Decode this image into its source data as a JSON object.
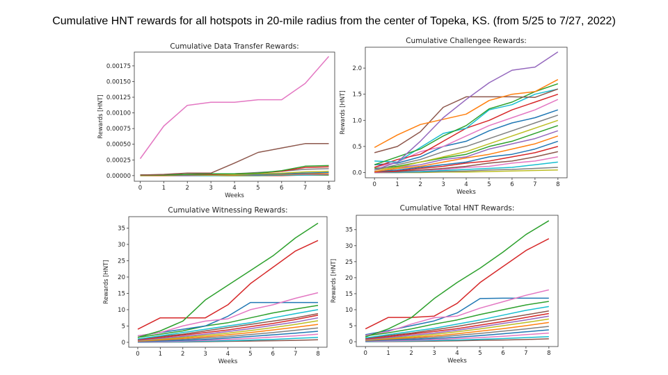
{
  "title": "Cumulative HNT rewards for all hotspots in 20-mile radius from the center of Topeka, KS. (from 5/25 to 7/27, 2022)",
  "colors": [
    "#1f77b4",
    "#ff7f0e",
    "#2ca02c",
    "#d62728",
    "#9467bd",
    "#8c564b",
    "#e377c2",
    "#7f7f7f",
    "#bcbd22",
    "#17becf"
  ],
  "chart_data": [
    {
      "type": "line",
      "title": "Cumulative Data Transfer Rewards:",
      "xlabel": "Weeks",
      "ylabel": "Rewards [HNT]",
      "x": [
        0,
        1,
        2,
        3,
        4,
        5,
        6,
        7,
        8
      ],
      "xlim": [
        -0.25,
        8.25
      ],
      "ylim": [
        -9e-05,
        0.00197
      ],
      "yticks": [
        "0.00000",
        "0.00025",
        "0.00050",
        "0.00075",
        "0.00100",
        "0.00125",
        "0.00150",
        "0.00175"
      ],
      "ytick_values": [
        0,
        0.00025,
        0.0005,
        0.00075,
        0.001,
        0.00125,
        0.0015,
        0.00175
      ],
      "series": [
        {
          "color": "#e377c2",
          "values": [
            0.00027,
            0.00079,
            0.00112,
            0.00117,
            0.00117,
            0.00121,
            0.00121,
            0.00147,
            0.0019
          ]
        },
        {
          "color": "#8c564b",
          "values": [
            1e-05,
            2e-05,
            4e-05,
            4e-05,
            0.0002,
            0.00037,
            0.00044,
            0.00051,
            0.00051
          ]
        },
        {
          "color": "#2ca02c",
          "values": [
            1e-05,
            1e-05,
            2e-05,
            3e-05,
            3e-05,
            4e-05,
            8e-05,
            0.00015,
            0.00016
          ]
        },
        {
          "color": "#d62728",
          "values": [
            1e-05,
            1e-05,
            2e-05,
            2e-05,
            3e-05,
            4e-05,
            7e-05,
            0.00013,
            0.00014
          ]
        },
        {
          "color": "#7f7f7f",
          "values": [
            1e-05,
            1e-05,
            1e-05,
            2e-05,
            3e-05,
            5e-05,
            7e-05,
            0.0001,
            0.00011
          ]
        },
        {
          "color": "#bcbd22",
          "values": [
            0,
            1e-05,
            1e-05,
            1e-05,
            2e-05,
            3e-05,
            4e-05,
            6e-05,
            7e-05
          ]
        },
        {
          "color": "#1f77b4",
          "values": [
            1e-05,
            1e-05,
            2e-05,
            2e-05,
            2e-05,
            2e-05,
            3e-05,
            4e-05,
            5e-05
          ]
        },
        {
          "color": "#ff7f0e",
          "values": [
            0,
            0,
            1e-05,
            1e-05,
            1e-05,
            2e-05,
            2e-05,
            3e-05,
            3e-05
          ]
        },
        {
          "color": "#9467bd",
          "values": [
            0,
            0,
            0,
            1e-05,
            1e-05,
            1e-05,
            2e-05,
            2e-05,
            2e-05
          ]
        },
        {
          "color": "#17becf",
          "values": [
            0,
            0,
            0,
            0,
            1e-05,
            1e-05,
            1e-05,
            1e-05,
            2e-05
          ]
        },
        {
          "color": "#2ca02c",
          "values": [
            0,
            0,
            0,
            0,
            0,
            0,
            1e-05,
            1e-05,
            1e-05
          ]
        },
        {
          "color": "#d62728",
          "values": [
            0,
            0,
            0,
            0,
            0,
            0,
            0,
            1e-05,
            1e-05
          ]
        }
      ]
    },
    {
      "type": "line",
      "title": "Cumulative Challengee Rewards:",
      "xlabel": "Weeks",
      "ylabel": "Rewards [HNT]",
      "x": [
        0,
        1,
        2,
        3,
        4,
        5,
        6,
        7,
        8
      ],
      "xlim": [
        -0.4,
        8.4
      ],
      "ylim": [
        -0.1,
        2.4
      ],
      "yticks": [
        "0.0",
        "0.5",
        "1.0",
        "1.5",
        "2.0"
      ],
      "ytick_values": [
        0,
        0.5,
        1,
        1.5,
        2
      ],
      "series": [
        {
          "color": "#9467bd",
          "values": [
            0.05,
            0.2,
            0.6,
            1.05,
            1.4,
            1.72,
            1.96,
            2.02,
            2.31
          ]
        },
        {
          "color": "#ff7f0e",
          "values": [
            0.48,
            0.72,
            0.92,
            1.02,
            1.12,
            1.38,
            1.5,
            1.55,
            1.78
          ]
        },
        {
          "color": "#8c564b",
          "values": [
            0.38,
            0.5,
            0.78,
            1.25,
            1.45,
            1.45,
            1.45,
            1.44,
            1.6
          ]
        },
        {
          "color": "#2ca02c",
          "values": [
            0.15,
            0.3,
            0.45,
            0.7,
            0.9,
            1.22,
            1.35,
            1.55,
            1.7
          ]
        },
        {
          "color": "#17becf",
          "values": [
            0.22,
            0.2,
            0.48,
            0.75,
            0.85,
            1.2,
            1.3,
            1.5,
            1.6
          ]
        },
        {
          "color": "#d62728",
          "values": [
            0.1,
            0.25,
            0.35,
            0.6,
            0.85,
            1.0,
            1.2,
            1.35,
            1.5
          ]
        },
        {
          "color": "#e377c2",
          "values": [
            0.1,
            0.2,
            0.4,
            0.5,
            0.7,
            0.9,
            1.05,
            1.2,
            1.4
          ]
        },
        {
          "color": "#1f77b4",
          "values": [
            0.15,
            0.18,
            0.3,
            0.5,
            0.6,
            0.8,
            0.95,
            1.05,
            1.2
          ]
        },
        {
          "color": "#7f7f7f",
          "values": [
            0.05,
            0.15,
            0.25,
            0.4,
            0.5,
            0.65,
            0.8,
            0.95,
            1.1
          ]
        },
        {
          "color": "#bcbd22",
          "values": [
            0.05,
            0.1,
            0.2,
            0.3,
            0.4,
            0.55,
            0.7,
            0.85,
            1.0
          ]
        },
        {
          "color": "#2ca02c",
          "values": [
            0.08,
            0.12,
            0.2,
            0.28,
            0.35,
            0.5,
            0.6,
            0.75,
            0.9
          ]
        },
        {
          "color": "#9467bd",
          "values": [
            0.05,
            0.1,
            0.15,
            0.25,
            0.3,
            0.45,
            0.55,
            0.65,
            0.8
          ]
        },
        {
          "color": "#ff7f0e",
          "values": [
            0.02,
            0.08,
            0.12,
            0.2,
            0.28,
            0.35,
            0.45,
            0.55,
            0.7
          ]
        },
        {
          "color": "#1f77b4",
          "values": [
            0.02,
            0.05,
            0.1,
            0.15,
            0.2,
            0.3,
            0.35,
            0.45,
            0.6
          ]
        },
        {
          "color": "#d62728",
          "values": [
            0.01,
            0.03,
            0.08,
            0.12,
            0.18,
            0.22,
            0.3,
            0.38,
            0.5
          ]
        },
        {
          "color": "#8c564b",
          "values": [
            0.01,
            0.02,
            0.05,
            0.08,
            0.12,
            0.18,
            0.22,
            0.3,
            0.4
          ]
        },
        {
          "color": "#e377c2",
          "values": [
            0,
            0.02,
            0.04,
            0.06,
            0.1,
            0.12,
            0.18,
            0.22,
            0.3
          ]
        },
        {
          "color": "#17becf",
          "values": [
            0,
            0.01,
            0.02,
            0.04,
            0.06,
            0.08,
            0.1,
            0.15,
            0.2
          ]
        },
        {
          "color": "#7f7f7f",
          "values": [
            0,
            0,
            0.01,
            0.02,
            0.03,
            0.05,
            0.06,
            0.08,
            0.1
          ]
        },
        {
          "color": "#bcbd22",
          "values": [
            0,
            0,
            0,
            0.01,
            0.01,
            0.02,
            0.03,
            0.04,
            0.05
          ]
        }
      ]
    },
    {
      "type": "line",
      "title": "Cumulative Witnessing Rewards:",
      "xlabel": "Weeks",
      "ylabel": "Rewards [HNT]",
      "x": [
        0,
        1,
        2,
        3,
        4,
        5,
        6,
        7,
        8
      ],
      "xlim": [
        -0.4,
        8.4
      ],
      "ylim": [
        -1.5,
        38.5
      ],
      "yticks": [
        "0",
        "5",
        "10",
        "15",
        "20",
        "25",
        "30",
        "35"
      ],
      "ytick_values": [
        0,
        5,
        10,
        15,
        20,
        25,
        30,
        35
      ],
      "series": [
        {
          "color": "#2ca02c",
          "values": [
            1.5,
            3.5,
            6.5,
            13,
            17.5,
            22,
            26.5,
            32,
            36.5
          ]
        },
        {
          "color": "#d62728",
          "values": [
            4,
            7.5,
            7.5,
            7.5,
            11.5,
            18,
            23,
            28,
            31.2
          ]
        },
        {
          "color": "#e377c2",
          "values": [
            2,
            3,
            5,
            6.5,
            7.2,
            10,
            11.5,
            13.5,
            15.2
          ]
        },
        {
          "color": "#1f77b4",
          "values": [
            2,
            3,
            4,
            5,
            8,
            12.2,
            12.2,
            12.2,
            12.2
          ]
        },
        {
          "color": "#2ca02c",
          "values": [
            1.5,
            2.5,
            3.5,
            5,
            6,
            7.5,
            9,
            10.2,
            11.3
          ]
        },
        {
          "color": "#17becf",
          "values": [
            1,
            2,
            3,
            4,
            5,
            6,
            7.5,
            8.8,
            10
          ]
        },
        {
          "color": "#8c564b",
          "values": [
            1,
            1.8,
            2.5,
            3.5,
            4.5,
            5.5,
            6.5,
            7.5,
            8.8
          ]
        },
        {
          "color": "#d62728",
          "values": [
            0.8,
            1.5,
            2.2,
            3,
            3.8,
            4.8,
            5.8,
            7,
            8.3
          ]
        },
        {
          "color": "#9467bd",
          "values": [
            0.6,
            1.2,
            1.8,
            2.5,
            3.3,
            4.2,
            5.2,
            6.2,
            7.5
          ]
        },
        {
          "color": "#bcbd22",
          "values": [
            0.5,
            1,
            1.5,
            2.1,
            2.8,
            3.6,
            4.5,
            5.5,
            6.6
          ]
        },
        {
          "color": "#ff7f0e",
          "values": [
            0.4,
            0.8,
            1.2,
            1.7,
            2.3,
            3,
            3.8,
            4.6,
            5.5
          ]
        },
        {
          "color": "#7f7f7f",
          "values": [
            0.3,
            0.6,
            0.9,
            1.3,
            1.8,
            2.4,
            3,
            3.7,
            4.4
          ]
        },
        {
          "color": "#1f77b4",
          "values": [
            0.2,
            0.4,
            0.6,
            0.9,
            1.3,
            1.8,
            2.3,
            2.8,
            3.4
          ]
        },
        {
          "color": "#e377c2",
          "values": [
            0.1,
            0.2,
            0.4,
            0.6,
            0.9,
            1.2,
            1.6,
            2,
            2.5
          ]
        },
        {
          "color": "#17becf",
          "values": [
            0.05,
            0.1,
            0.2,
            0.35,
            0.5,
            0.7,
            0.9,
            1.2,
            1.5
          ]
        },
        {
          "color": "#8c564b",
          "values": [
            0,
            0.05,
            0.1,
            0.2,
            0.3,
            0.4,
            0.5,
            0.6,
            0.8
          ]
        }
      ]
    },
    {
      "type": "line",
      "title": "Cumulative Total HNT Rewards:",
      "xlabel": "Weeks",
      "ylabel": "Rewards [HNT]",
      "x": [
        0,
        1,
        2,
        3,
        4,
        5,
        6,
        7,
        8
      ],
      "xlim": [
        -0.4,
        8.4
      ],
      "ylim": [
        -1.5,
        39.5
      ],
      "yticks": [
        "0",
        "5",
        "10",
        "15",
        "20",
        "25",
        "30",
        "35"
      ],
      "ytick_values": [
        0,
        5,
        10,
        15,
        20,
        25,
        30,
        35
      ],
      "series": [
        {
          "color": "#2ca02c",
          "values": [
            1.5,
            4,
            7.5,
            13.5,
            18.5,
            23,
            28,
            33.5,
            37.8
          ]
        },
        {
          "color": "#d62728",
          "values": [
            4,
            7.6,
            7.6,
            8,
            12,
            18.5,
            23.5,
            28.5,
            32.2
          ]
        },
        {
          "color": "#e377c2",
          "values": [
            2,
            3.2,
            5.5,
            7.5,
            8,
            10.5,
            12.5,
            14.5,
            16.2
          ]
        },
        {
          "color": "#1f77b4",
          "values": [
            2.2,
            3.5,
            5,
            6.5,
            9,
            13.5,
            13.6,
            13.6,
            13.6
          ]
        },
        {
          "color": "#2ca02c",
          "values": [
            1.8,
            2.8,
            4,
            5.5,
            6.8,
            8.5,
            10,
            11.5,
            12.6
          ]
        },
        {
          "color": "#17becf",
          "values": [
            1.2,
            2.2,
            3.2,
            4.2,
            5.5,
            6.8,
            8.3,
            9.8,
            11
          ]
        },
        {
          "color": "#8c564b",
          "values": [
            1.1,
            1.9,
            2.7,
            3.7,
            4.8,
            6,
            7.2,
            8.4,
            9.6
          ]
        },
        {
          "color": "#d62728",
          "values": [
            0.9,
            1.6,
            2.4,
            3.2,
            4.1,
            5.2,
            6.3,
            7.6,
            8.8
          ]
        },
        {
          "color": "#9467bd",
          "values": [
            0.7,
            1.3,
            2,
            2.7,
            3.6,
            4.6,
            5.7,
            6.8,
            8
          ]
        },
        {
          "color": "#bcbd22",
          "values": [
            0.6,
            1.1,
            1.6,
            2.3,
            3.1,
            4,
            5,
            6,
            7.1
          ]
        },
        {
          "color": "#ff7f0e",
          "values": [
            0.5,
            0.9,
            1.3,
            1.8,
            2.5,
            3.3,
            4.1,
            5,
            6
          ]
        },
        {
          "color": "#7f7f7f",
          "values": [
            0.35,
            0.7,
            1,
            1.4,
            2,
            2.6,
            3.3,
            4,
            4.8
          ]
        },
        {
          "color": "#1f77b4",
          "values": [
            0.25,
            0.5,
            0.7,
            1,
            1.4,
            1.9,
            2.5,
            3.1,
            3.7
          ]
        },
        {
          "color": "#e377c2",
          "values": [
            0.15,
            0.25,
            0.45,
            0.65,
            1,
            1.3,
            1.7,
            2.2,
            2.7
          ]
        },
        {
          "color": "#17becf",
          "values": [
            0.05,
            0.15,
            0.25,
            0.4,
            0.55,
            0.75,
            1,
            1.3,
            1.6
          ]
        },
        {
          "color": "#8c564b",
          "values": [
            0,
            0.05,
            0.1,
            0.2,
            0.3,
            0.45,
            0.55,
            0.7,
            0.9
          ]
        }
      ]
    }
  ]
}
